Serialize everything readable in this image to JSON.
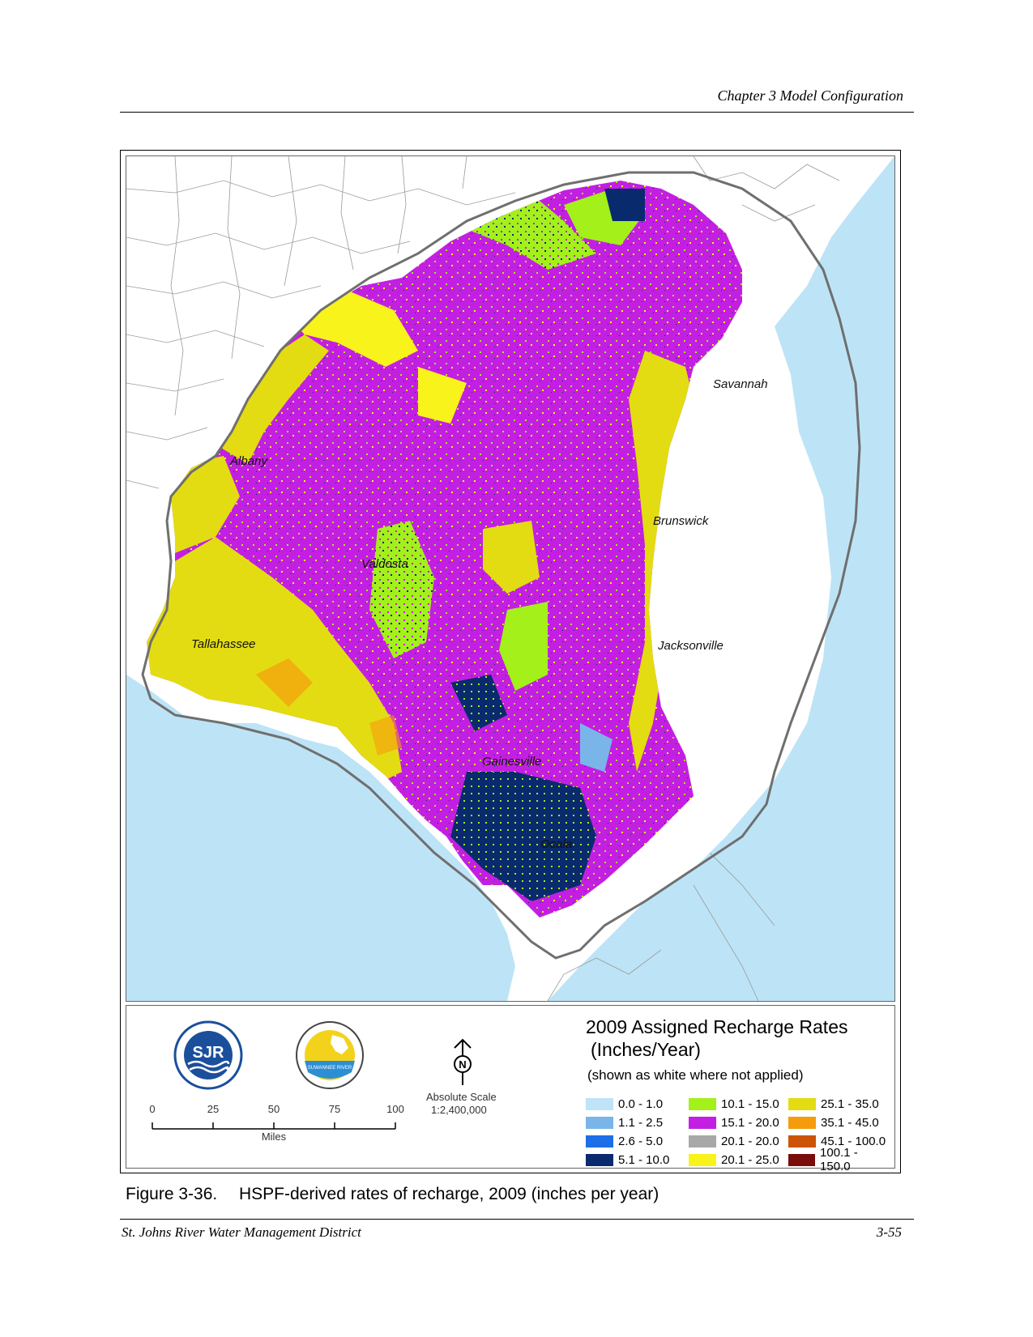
{
  "header": {
    "chapter": "Chapter 3 Model Configuration"
  },
  "footer": {
    "left": "St. Johns River Water Management District",
    "right": "3-55"
  },
  "caption": {
    "number": "Figure 3-36.",
    "text": "HSPF-derived rates of recharge, 2009 (inches per year)"
  },
  "map": {
    "cities": [
      "Savannah",
      "Albany",
      "Brunswick",
      "Valdosta",
      "Tallahassee",
      "Jacksonville",
      "Gainesville",
      "Ocala"
    ],
    "colors": {
      "water": "#bde4f6",
      "land": "#ffffff",
      "county_lines": "#9a9a9a",
      "boundary": "#6f6f6f"
    }
  },
  "logos": {
    "sjr_text": "SJR",
    "srwmd_text": "SUWANNEE RIVER"
  },
  "scalebar": {
    "ticks": [
      "0",
      "25",
      "50",
      "75",
      "100"
    ],
    "unit": "Miles"
  },
  "north_arrow": {
    "label": "N"
  },
  "absolute_scale": {
    "label": "Absolute Scale",
    "value": "1:2,400,000"
  },
  "legend": {
    "title_line1": "2009 Assigned Recharge Rates",
    "title_line2": "(Inches/Year)",
    "note": "(shown as white where not applied)",
    "items": [
      {
        "label": "0.0 - 1.0",
        "color": "#bfe3f7"
      },
      {
        "label": "1.1 - 2.5",
        "color": "#7ab5ea"
      },
      {
        "label": "2.6 - 5.0",
        "color": "#1c6fe8"
      },
      {
        "label": "5.1 - 10.0",
        "color": "#0a2a6e"
      },
      {
        "label": "10.1 - 15.0",
        "color": "#a3f01a"
      },
      {
        "label": "15.1 - 20.0",
        "color": "#c31fe3"
      },
      {
        "label": "20.1 - 20.0",
        "color": "#a8a8a8"
      },
      {
        "label": "20.1 - 25.0",
        "color": "#f8f31a"
      },
      {
        "label": "25.1 - 35.0",
        "color": "#e3dc12"
      },
      {
        "label": "35.1 - 45.0",
        "color": "#f59c0c"
      },
      {
        "label": "45.1 - 100.0",
        "color": "#cc5406"
      },
      {
        "label": "100.1 - 150.0",
        "color": "#7a0c0c"
      }
    ]
  }
}
